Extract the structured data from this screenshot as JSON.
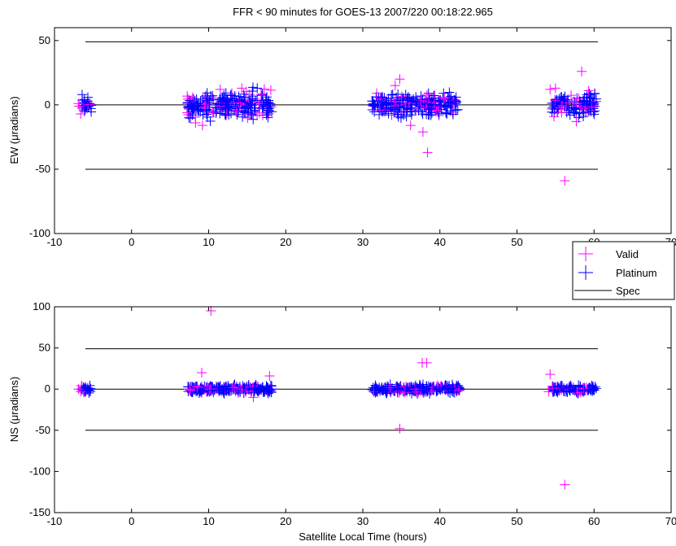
{
  "chart_data": {
    "type": "scatter",
    "title": "FFR < 90 minutes for GOES-13 2007/220 00:18:22.965",
    "xlabel": "Satellite Local Time (hours)",
    "colors": {
      "valid": "#ff00ff",
      "platinum": "#0000ff",
      "spec": "#000000"
    },
    "legend": {
      "placement": "between-panels-right",
      "entries": [
        {
          "key": "valid",
          "label": "Valid"
        },
        {
          "key": "platinum",
          "label": "Platinum"
        },
        {
          "key": "spec",
          "label": "Spec"
        }
      ]
    },
    "xlim": [
      -10,
      70
    ],
    "xticks": [
      "-10",
      "0",
      "10",
      "20",
      "30",
      "40",
      "50",
      "60",
      "70"
    ],
    "panels": [
      {
        "id": "ew",
        "ylabel": "EW (μradians)",
        "ylim": [
          -100,
          60
        ],
        "yticks": [
          "-100",
          "-50",
          "0",
          "50"
        ],
        "yticks_values": [
          -100,
          -50,
          0,
          50
        ],
        "spec_lines": [
          {
            "y": 49,
            "x": [
              -6,
              60.5
            ]
          },
          {
            "y": 0,
            "x": [
              -6,
              60.5
            ]
          },
          {
            "y": -50,
            "x": [
              -6,
              60.5
            ]
          }
        ],
        "valid_outliers": [
          [
            -6.8,
            -1
          ],
          [
            -6.6,
            -7
          ],
          [
            -6.9,
            1
          ],
          [
            7.2,
            -6
          ],
          [
            8.3,
            -14
          ],
          [
            9.2,
            -16
          ],
          [
            11.5,
            12
          ],
          [
            14.3,
            13
          ],
          [
            16.8,
            8
          ],
          [
            31.8,
            9
          ],
          [
            32.2,
            -4
          ],
          [
            34.2,
            15
          ],
          [
            34.8,
            20
          ],
          [
            36.2,
            -16
          ],
          [
            37.8,
            -21
          ],
          [
            38.4,
            -37
          ],
          [
            40.5,
            5
          ],
          [
            54.3,
            12
          ],
          [
            55.0,
            13
          ],
          [
            55.8,
            -6
          ],
          [
            56.2,
            -59
          ],
          [
            57.7,
            -13
          ],
          [
            58.4,
            26
          ],
          [
            59.3,
            11
          ],
          [
            54.8,
            -9
          ]
        ],
        "clusters": [
          {
            "range": [
              -6.5,
              -5.2
            ],
            "spread": 9
          },
          {
            "range": [
              7.2,
              18.2
            ],
            "spread": 15
          },
          {
            "range": [
              31.2,
              42.6
            ],
            "spread": 13
          },
          {
            "range": [
              54.5,
              60.3
            ],
            "spread": 13
          }
        ]
      },
      {
        "id": "ns",
        "ylabel": "NS (μradians)",
        "ylim": [
          -150,
          100
        ],
        "yticks": [
          "-150",
          "-100",
          "-50",
          "0",
          "50",
          "100"
        ],
        "yticks_values": [
          -150,
          -100,
          -50,
          0,
          50,
          100
        ],
        "spec_lines": [
          {
            "y": 49,
            "x": [
              -6,
              60.5
            ]
          },
          {
            "y": 0,
            "x": [
              -6,
              60.5
            ]
          },
          {
            "y": -50,
            "x": [
              -6,
              60.5
            ]
          }
        ],
        "valid_outliers": [
          [
            -6.9,
            0
          ],
          [
            -6.6,
            -3
          ],
          [
            7.6,
            -2
          ],
          [
            9.1,
            20
          ],
          [
            10.3,
            95
          ],
          [
            15.8,
            -10
          ],
          [
            17.9,
            16
          ],
          [
            34.8,
            -48
          ],
          [
            37.7,
            32
          ],
          [
            38.3,
            32
          ],
          [
            54.3,
            18
          ],
          [
            54.1,
            -3
          ],
          [
            56.2,
            -116
          ],
          [
            57.8,
            -5
          ]
        ],
        "clusters": [
          {
            "range": [
              -6.5,
              -5.2
            ],
            "spread": 7
          },
          {
            "range": [
              7.2,
              18.2
            ],
            "spread": 7
          },
          {
            "range": [
              31.2,
              42.6
            ],
            "spread": 7
          },
          {
            "range": [
              54.5,
              60.3
            ],
            "spread": 6
          }
        ]
      }
    ]
  }
}
